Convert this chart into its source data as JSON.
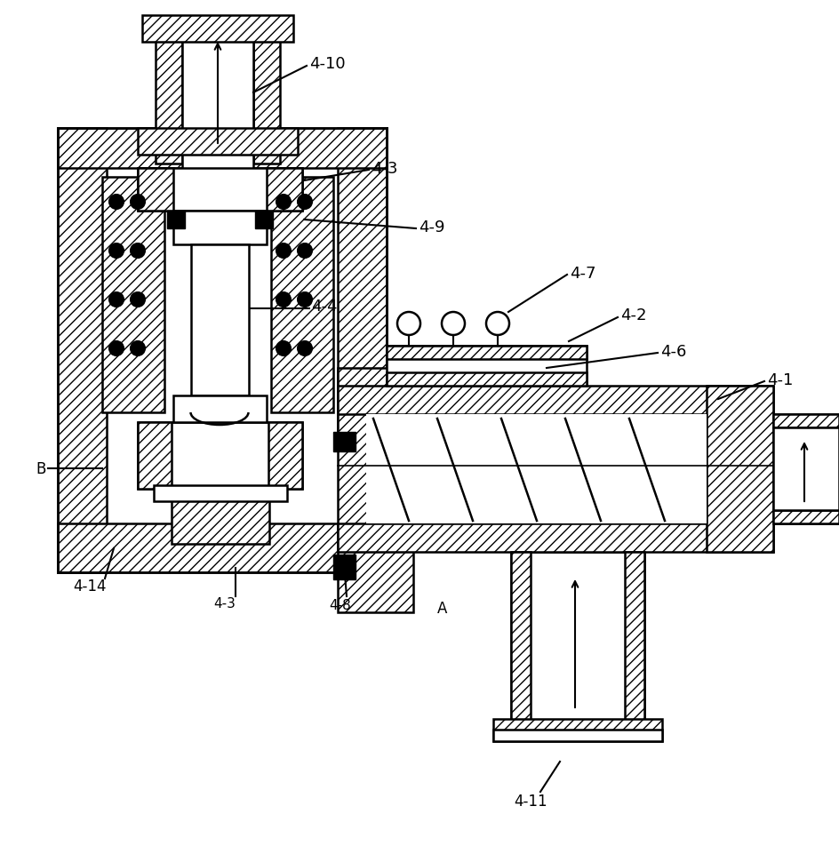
{
  "bg_color": "#ffffff",
  "figsize": [
    9.44,
    9.53
  ],
  "dpi": 100
}
